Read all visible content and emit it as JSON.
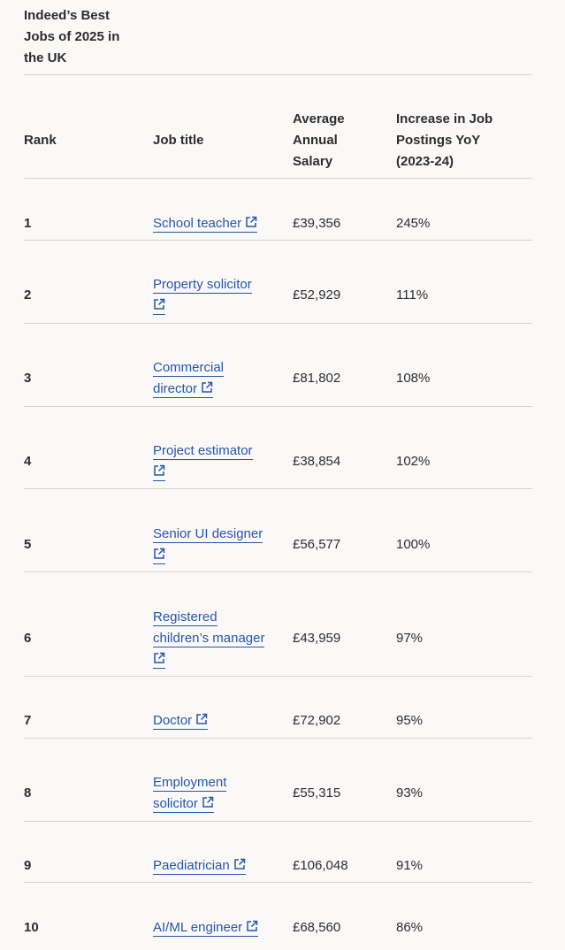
{
  "table": {
    "caption": "Indeed’s Best Jobs of 2025 in the UK",
    "caption_lines": [
      "Indeed’s Best",
      "Jobs of 2025 in",
      "the UK"
    ],
    "headers": {
      "rank": "Rank",
      "job_title": "Job title",
      "salary_lines": [
        "Average",
        "Annual",
        "Salary"
      ],
      "increase_lines": [
        "Increase in Job",
        "Postings YoY",
        "(2023-24)"
      ]
    },
    "rows": [
      {
        "rank": "1",
        "title_lines": [
          "School teacher"
        ],
        "salary": "£39,356",
        "increase": "245%"
      },
      {
        "rank": "2",
        "title_lines": [
          "Property solicitor",
          ""
        ],
        "salary": "£52,929",
        "increase": "111%"
      },
      {
        "rank": "3",
        "title_lines": [
          "Commercial",
          "director"
        ],
        "salary": "£81,802",
        "increase": "108%"
      },
      {
        "rank": "4",
        "title_lines": [
          "Project estimator",
          ""
        ],
        "salary": "£38,854",
        "increase": "102%"
      },
      {
        "rank": "5",
        "title_lines": [
          "Senior UI designer",
          ""
        ],
        "salary": "£56,577",
        "increase": "100%"
      },
      {
        "rank": "6",
        "title_lines": [
          "Registered",
          "children’s manager",
          ""
        ],
        "salary": "£43,959",
        "increase": "97%"
      },
      {
        "rank": "7",
        "title_lines": [
          "Doctor"
        ],
        "salary": "£72,902",
        "increase": "95%"
      },
      {
        "rank": "8",
        "title_lines": [
          "Employment",
          "solicitor"
        ],
        "salary": "£55,315",
        "increase": "93%"
      },
      {
        "rank": "9",
        "title_lines": [
          "Paediatrician"
        ],
        "salary": "£106,048",
        "increase": "91%"
      },
      {
        "rank": "10",
        "title_lines": [
          "AI/ML engineer"
        ],
        "salary": "£68,560",
        "increase": "86%"
      }
    ],
    "icons": {
      "external_link": "external-link-icon"
    },
    "colors": {
      "link": "#2557a7",
      "rule": "#d4d2d0",
      "text": "#2d2d2d",
      "background": "#fbf8f8"
    }
  }
}
